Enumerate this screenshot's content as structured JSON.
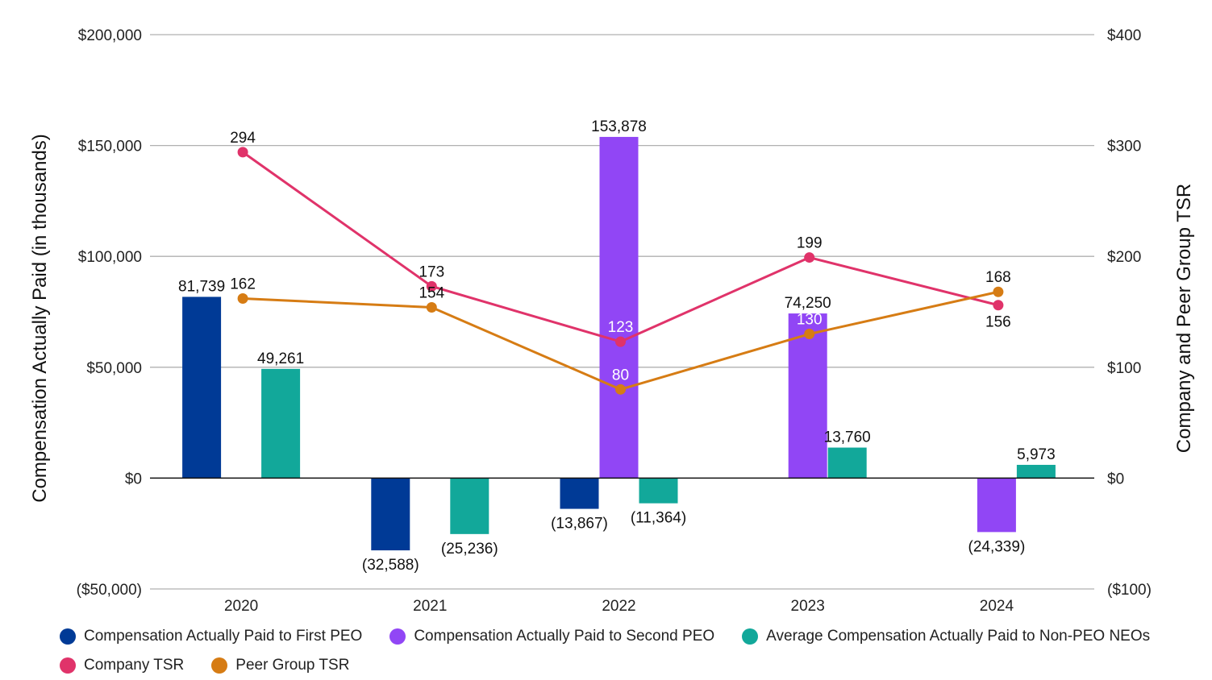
{
  "chart_data": {
    "type": "bar+line",
    "categories": [
      "2020",
      "2021",
      "2022",
      "2023",
      "2024"
    ],
    "ylabel": "Compensation Actually Paid (in thousands)",
    "y2label": "Company and Peer Group TSR",
    "ylim": [
      -50000,
      200000
    ],
    "y2lim": [
      -100,
      400
    ],
    "yticks": [
      "($50,000)",
      "$0",
      "$50,000",
      "$100,000",
      "$150,000",
      "$200,000"
    ],
    "yticks_values": [
      -50000,
      0,
      50000,
      100000,
      150000,
      200000
    ],
    "y2ticks": [
      "($100)",
      "$0",
      "$100",
      "$200",
      "$300",
      "$400"
    ],
    "y2ticks_values": [
      -100,
      0,
      100,
      200,
      300,
      400
    ],
    "grid": true,
    "legend_placement": "bottom",
    "bar_series": [
      {
        "name": "Compensation Actually Paid to First PEO",
        "color": "#003A96",
        "values": [
          81739,
          -32588,
          -13867,
          null,
          null
        ],
        "labels": [
          "81,739",
          "(32,588)",
          "(13,867)",
          null,
          null
        ]
      },
      {
        "name": "Compensation Actually Paid to Second PEO",
        "color": "#9146F5",
        "values": [
          null,
          null,
          153878,
          74250,
          -24339
        ],
        "labels": [
          null,
          null,
          "153,878",
          "74,250",
          "(24,339)"
        ]
      },
      {
        "name": "Average Compensation Actually Paid to Non-PEO NEOs",
        "color": "#12A89A",
        "values": [
          49261,
          -25236,
          -11364,
          13760,
          5973
        ],
        "labels": [
          "49,261",
          "(25,236)",
          "(11,364)",
          "13,760",
          "5,973"
        ]
      }
    ],
    "line_series": [
      {
        "name": "Company TSR",
        "color": "#E0336A",
        "axis": "right",
        "values": [
          294,
          173,
          123,
          199,
          156
        ]
      },
      {
        "name": "Peer Group TSR",
        "color": "#D67C14",
        "axis": "right",
        "values": [
          162,
          154,
          80,
          130,
          168
        ]
      }
    ]
  }
}
